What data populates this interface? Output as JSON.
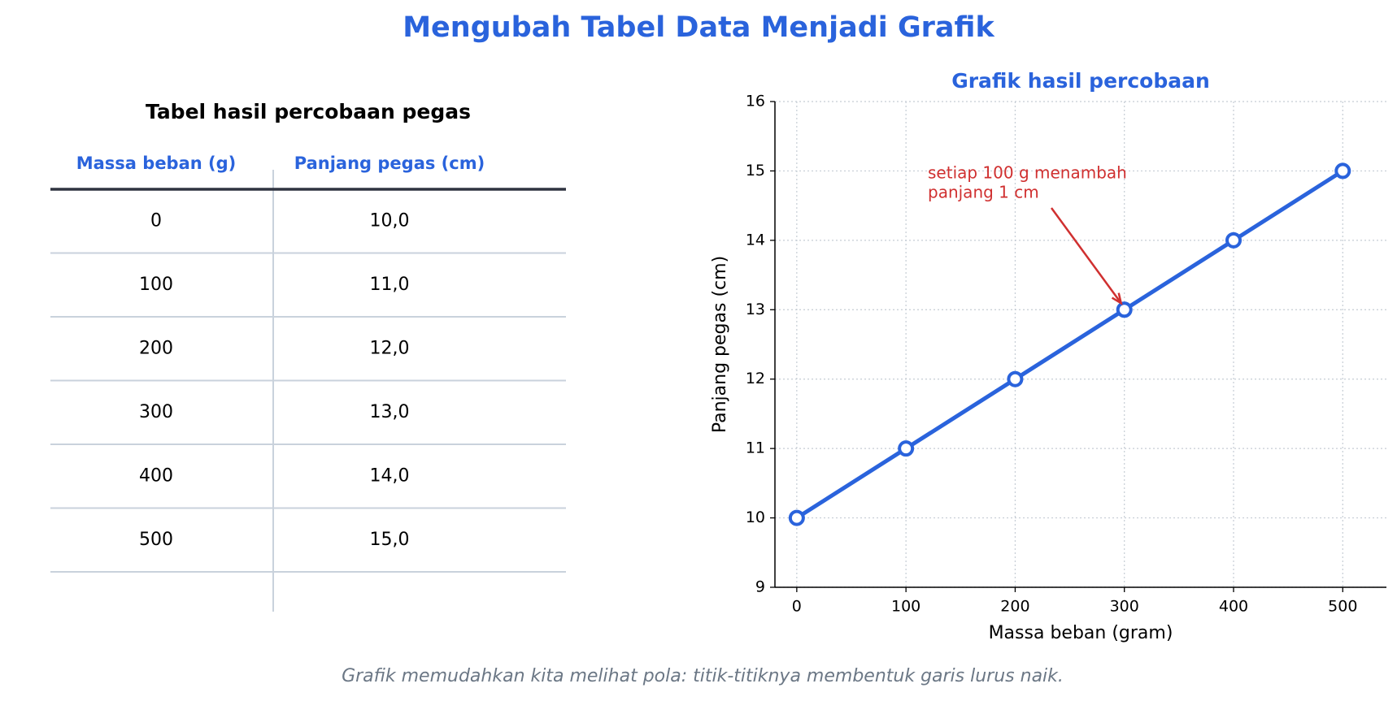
{
  "title": "Mengubah Tabel Data Menjadi Grafik",
  "table": {
    "title": "Tabel hasil percobaan pegas",
    "columns": [
      "Massa beban (g)",
      "Panjang pegas (cm)"
    ],
    "rows": [
      [
        "0",
        "10,0"
      ],
      [
        "100",
        "11,0"
      ],
      [
        "200",
        "12,0"
      ],
      [
        "300",
        "13,0"
      ],
      [
        "400",
        "14,0"
      ],
      [
        "500",
        "15,0"
      ]
    ]
  },
  "chart_data": {
    "type": "line",
    "title": "Grafik hasil percobaan",
    "x": [
      0,
      100,
      200,
      300,
      400,
      500
    ],
    "values": [
      10,
      11,
      12,
      13,
      14,
      15
    ],
    "color": "#2a63dc",
    "xlabel": "Massa beban (gram)",
    "ylabel": "Panjang pegas (cm)",
    "xlim": [
      -20,
      540
    ],
    "ylim": [
      9,
      16
    ],
    "xticks": [
      0,
      100,
      200,
      300,
      400,
      500
    ],
    "yticks": [
      9,
      10,
      11,
      12,
      13,
      14,
      15,
      16
    ],
    "grid": true,
    "annotation": {
      "lines": [
        "setiap 100 g menambah",
        "panjang 1 cm"
      ],
      "color": "#d03030"
    }
  },
  "caption": "Grafik memudahkan kita melihat pola: titik-titiknya membentuk garis lurus naik."
}
